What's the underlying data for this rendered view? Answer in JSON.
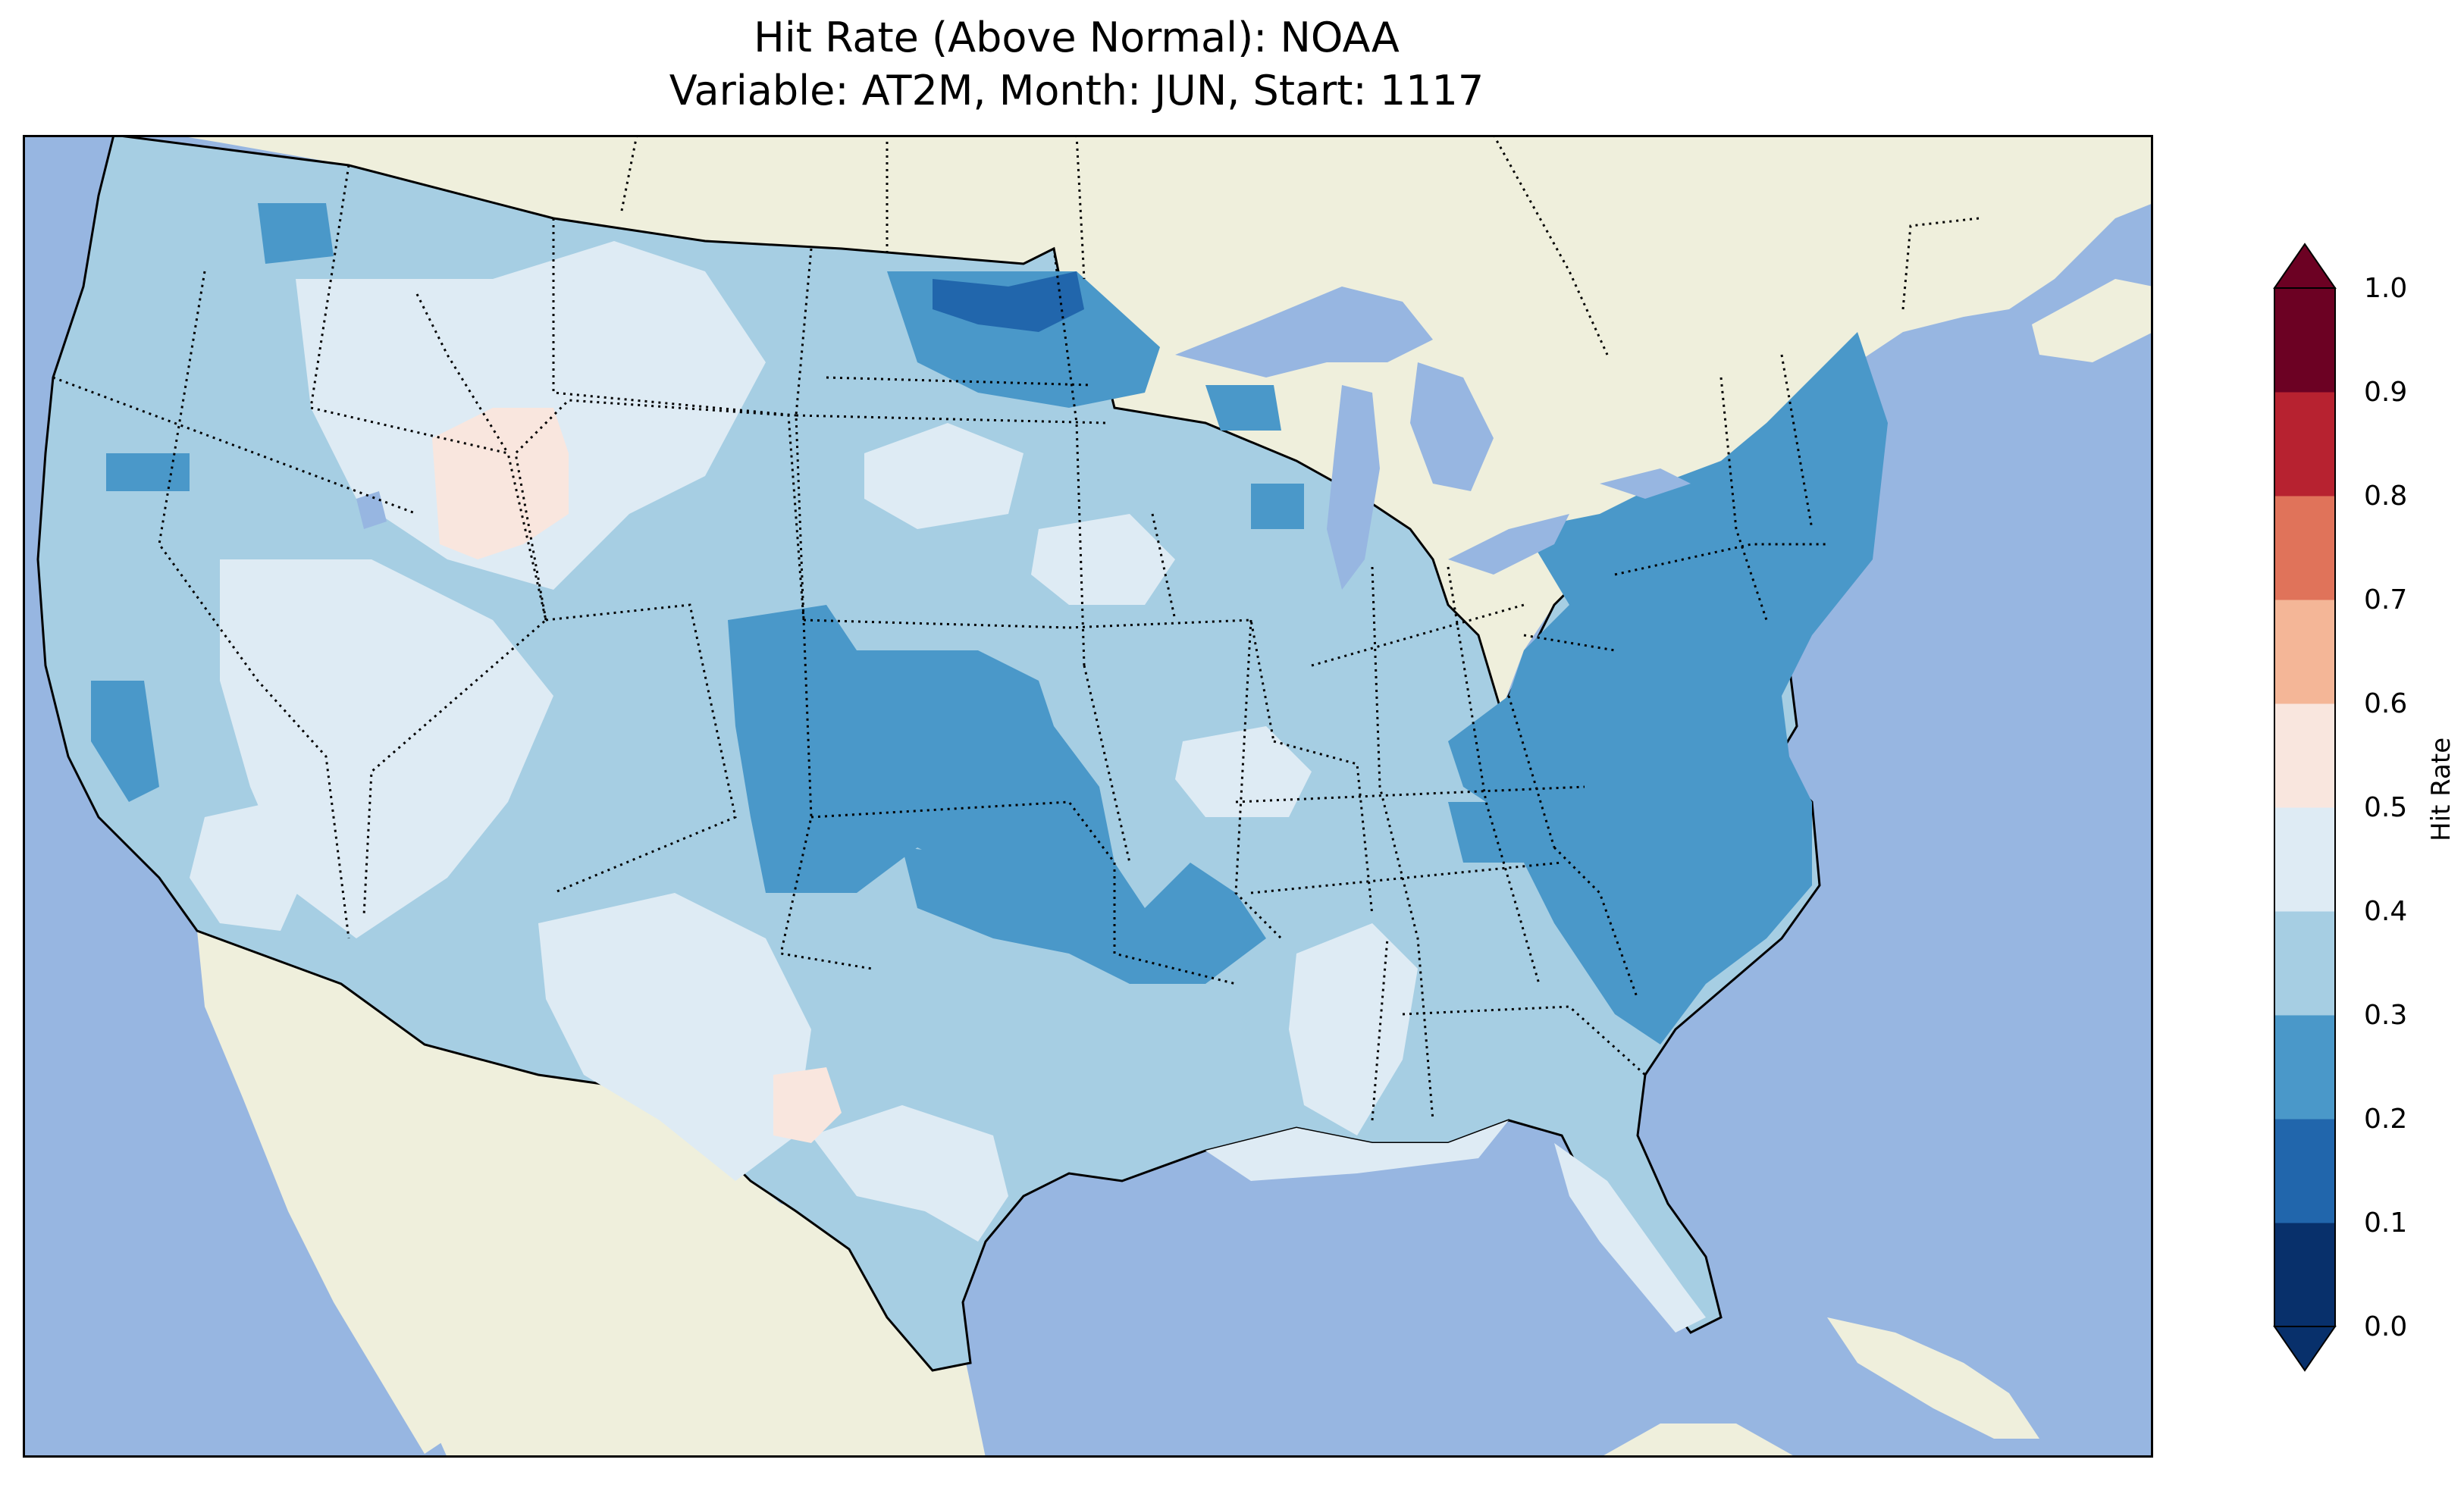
{
  "title": {
    "line1": "Hit Rate (Above Normal): NOAA",
    "line2": "Variable: AT2M, Month: JUN, Start: 1117"
  },
  "colorbar": {
    "label": "Hit Rate",
    "ticks": [
      "0.0",
      "0.1",
      "0.2",
      "0.3",
      "0.4",
      "0.5",
      "0.6",
      "0.7",
      "0.8",
      "0.9",
      "1.0"
    ],
    "colors": [
      "#053061",
      "#2166ac",
      "#4393c3",
      "#92c5de",
      "#d1e5f0",
      "#f7f7f7",
      "#fddbc7",
      "#f4a582",
      "#d6604d",
      "#b2182b",
      "#67001f"
    ],
    "bins": [
      "#08306b",
      "#2166ac",
      "#4a98c9",
      "#a6cee3",
      "#deebf4",
      "#f9e6de",
      "#f4b697",
      "#e0735a",
      "#b72230",
      "#6c0123"
    ]
  },
  "map": {
    "ocean_color": "#97b6e1",
    "land_color": "#efefdc",
    "region": "contiguous-us",
    "extent_lon": [
      -127,
      -65
    ],
    "extent_lat": [
      22,
      51
    ]
  },
  "chart_data": {
    "type": "heatmap",
    "title": "Hit Rate (Above Normal): NOAA\nVariable: AT2M, Month: JUN, Start: 1117",
    "colorbar_label": "Hit Rate",
    "vmin": 0.0,
    "vmax": 1.0,
    "levels": [
      0.0,
      0.1,
      0.2,
      0.3,
      0.4,
      0.5,
      0.6,
      0.7,
      0.8,
      0.9,
      1.0
    ],
    "regions": [
      {
        "region": "Pacific Northwest",
        "bin": "0.3-0.4"
      },
      {
        "region": "California coast",
        "bin": "0.3-0.4"
      },
      {
        "region": "Great Basin",
        "bin": "0.4-0.5"
      },
      {
        "region": "Southern Idaho",
        "bin": "0.5-0.6"
      },
      {
        "region": "Northern Rockies",
        "bin": "0.4-0.5"
      },
      {
        "region": "Northern Plains",
        "bin": "0.3-0.4"
      },
      {
        "region": "Northern Minnesota",
        "bin": "0.1-0.2"
      },
      {
        "region": "Colorado / Kansas",
        "bin": "0.2-0.3"
      },
      {
        "region": "Oklahoma / Arkansas",
        "bin": "0.2-0.3"
      },
      {
        "region": "Texas",
        "bin": "0.3-0.4"
      },
      {
        "region": "Southern New Mexico",
        "bin": "0.5-0.6"
      },
      {
        "region": "Midwest",
        "bin": "0.3-0.4"
      },
      {
        "region": "Southeast",
        "bin": "0.3-0.4"
      },
      {
        "region": "Florida",
        "bin": "0.4-0.5"
      },
      {
        "region": "Mid-Atlantic / Carolinas",
        "bin": "0.2-0.3"
      },
      {
        "region": "Northeast / New England",
        "bin": "0.2-0.3"
      }
    ]
  }
}
